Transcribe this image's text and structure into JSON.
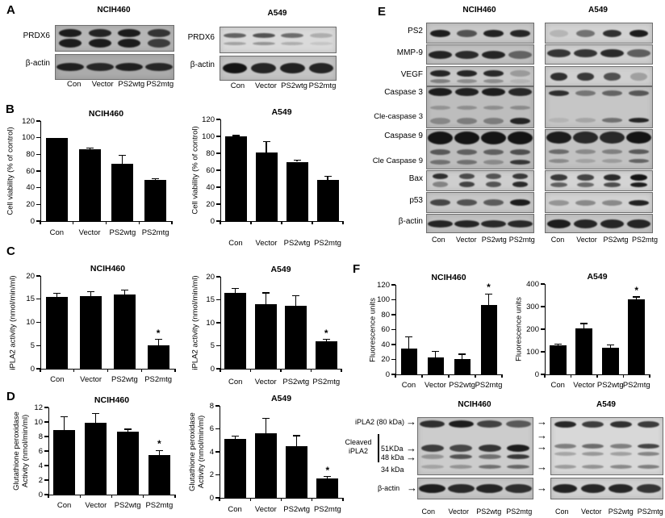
{
  "icons": {
    "arrow_right": "→"
  },
  "figure": {
    "panel_a": {
      "label": "A",
      "row_labels": [
        "PRDX6",
        "β-actin"
      ],
      "groups": [
        {
          "title": "NCIH460",
          "lanes": [
            "Con",
            "Vector",
            "PS2wtg",
            "PS2mtg"
          ]
        },
        {
          "title": "A549",
          "lanes": [
            "Con",
            "Vector",
            "PS2wtg",
            "PS2mtg"
          ]
        }
      ]
    },
    "panel_b": {
      "label": "B"
    },
    "panel_c": {
      "label": "C"
    },
    "panel_d": {
      "label": "D"
    },
    "panel_e": {
      "label": "E",
      "row_labels": [
        "PS2",
        "MMP-9",
        "VEGF",
        "Caspase 3",
        "Cle-caspase 3",
        "Caspase 9",
        "Cle Caspase 9",
        "Bax",
        "p53",
        "β-actin"
      ],
      "groups": [
        {
          "title": "NCIH460",
          "lanes": [
            "Con",
            "Vector",
            "PS2wtg",
            "PS2mtg"
          ]
        },
        {
          "title": "A549",
          "lanes": [
            "Con",
            "Vector",
            "PS2wtg",
            "PS2mtg"
          ]
        }
      ]
    },
    "panel_f": {
      "label": "F",
      "blot_labels": {
        "ipla2_80": "iPLA2 (80 kDa)",
        "cleaved_1": "Cleaved",
        "cleaved_2": "iPLA2",
        "kda_51": "51KDa",
        "kda_48": "48 kDa",
        "kda_34": "34 kDa",
        "beta_actin": "β-actin"
      },
      "groups": [
        {
          "title": "NCIH460",
          "lanes": [
            "Con",
            "Vector",
            "PS2wtg",
            "PS2mtg"
          ]
        },
        {
          "title": "A549",
          "lanes": [
            "Con",
            "Vector",
            "PS2wtg",
            "PS2mtg"
          ]
        }
      ]
    }
  },
  "chart_data": [
    {
      "id": "B-NCIH460",
      "panel": "B",
      "type": "bar",
      "title": "NCIH460",
      "ylabel": "Cell viability (% of control)",
      "categories": [
        "Con",
        "Vector",
        "PS2wtg",
        "PS2mtg"
      ],
      "values": [
        100,
        86,
        69,
        49
      ],
      "errors": [
        0,
        1.5,
        10,
        1.5
      ],
      "significance": [
        "",
        "",
        "",
        ""
      ],
      "ylim": [
        0,
        120
      ],
      "ystep": 20
    },
    {
      "id": "B-A549",
      "panel": "B",
      "type": "bar",
      "title": "A549",
      "ylabel": "Cell viability (% of control)",
      "categories": [
        "Con",
        "Vector",
        "PS2wtg",
        "PS2mtg"
      ],
      "values": [
        100,
        81,
        70,
        49
      ],
      "errors": [
        1,
        13,
        2,
        4
      ],
      "significance": [
        "",
        "",
        "",
        ""
      ],
      "ylim": [
        0,
        120
      ],
      "ystep": 20
    },
    {
      "id": "C-NCIH460",
      "panel": "C",
      "type": "bar",
      "title": "NCIH460",
      "ylabel": "iPLA2 activity (nmol/min/ml)",
      "categories": [
        "Con",
        "Vector",
        "PS2wtg",
        "PS2mtg"
      ],
      "values": [
        15.5,
        15.6,
        16,
        5
      ],
      "errors": [
        0.8,
        1,
        1,
        1.3
      ],
      "significance": [
        "",
        "",
        "",
        "*"
      ],
      "ylim": [
        0,
        20
      ],
      "ystep": 5
    },
    {
      "id": "C-A549",
      "panel": "C",
      "type": "bar",
      "title": "A549",
      "ylabel": "iPLA2 activity (nmol/min/ml)",
      "categories": [
        "Con",
        "Vector",
        "PS2wtg",
        "PS2mtg"
      ],
      "values": [
        16.5,
        14,
        13.7,
        6
      ],
      "errors": [
        1,
        2.5,
        2.2,
        0.4
      ],
      "significance": [
        "",
        "",
        "",
        "*"
      ],
      "ylim": [
        0,
        20
      ],
      "ystep": 5
    },
    {
      "id": "D-NCIH460",
      "panel": "D",
      "type": "bar",
      "title": "NCIH460",
      "ylabel": "Glutathione peroxidase\nActivity (nmol/min/ml)",
      "categories": [
        "Con",
        "Vector",
        "PS2wtg",
        "PS2mtg"
      ],
      "values": [
        8.9,
        9.9,
        8.7,
        5.4
      ],
      "errors": [
        1.8,
        1.3,
        0.3,
        0.7
      ],
      "significance": [
        "",
        "",
        "",
        "*"
      ],
      "ylim": [
        0,
        12
      ],
      "ystep": 2
    },
    {
      "id": "D-A549",
      "panel": "D",
      "type": "bar",
      "title": "A549",
      "ylabel": "Glutathione peroxidase\nActivity (nmol/min/ml)",
      "categories": [
        "Con",
        "Vector",
        "PS2wtg",
        "PS2mtg"
      ],
      "values": [
        5.1,
        5.6,
        4.5,
        1.65
      ],
      "errors": [
        0.25,
        1.3,
        0.9,
        0.2
      ],
      "significance": [
        "",
        "",
        "",
        "*"
      ],
      "ylim": [
        0,
        8
      ],
      "ystep": 2
    },
    {
      "id": "F-NCIH460",
      "panel": "F",
      "type": "bar",
      "title": "NCIH460",
      "ylabel": "Fluorescence units",
      "categories": [
        "Con",
        "Vector",
        "PS2wtg",
        "PS2mtg"
      ],
      "values": [
        35,
        23,
        21,
        93
      ],
      "errors": [
        15,
        8,
        6,
        15
      ],
      "significance": [
        "",
        "",
        "",
        "*"
      ],
      "ylim": [
        0,
        120
      ],
      "ystep": 20
    },
    {
      "id": "F-A549",
      "panel": "F",
      "type": "bar",
      "title": "A549",
      "ylabel": "Fluorescence units",
      "categories": [
        "Con",
        "Vector",
        "PS2wtg",
        "PS2mtg"
      ],
      "values": [
        130,
        205,
        118,
        333
      ],
      "errors": [
        5,
        20,
        12,
        10
      ],
      "significance": [
        "",
        "",
        "",
        "*"
      ],
      "ylim": [
        0,
        400
      ],
      "ystep": 100
    }
  ],
  "blots": {
    "a_nci_prdx6": {
      "bg": "#b6b6b6",
      "rows": [
        {
          "y": 0.3,
          "h": 10,
          "bands": [
            0.95,
            0.9,
            0.95,
            0.8
          ]
        },
        {
          "y": 0.7,
          "h": 11,
          "bands": [
            0.95,
            0.95,
            0.95,
            0.75
          ]
        }
      ]
    },
    "a_nci_actin": {
      "bg": "#ababab",
      "rows": [
        {
          "y": 0.5,
          "h": 10,
          "w": 0.92,
          "bands": [
            0.92,
            0.88,
            0.92,
            0.88
          ]
        }
      ]
    },
    "a_a549_prdx6": {
      "bg": "#dadada",
      "rows": [
        {
          "y": 0.33,
          "h": 6,
          "bands": [
            0.6,
            0.68,
            0.55,
            0.22
          ]
        },
        {
          "y": 0.66,
          "h": 4,
          "bands": [
            0.28,
            0.35,
            0.22,
            0.1
          ]
        }
      ]
    },
    "a_a549_actin": {
      "bg": "#c4c4c4",
      "rows": [
        {
          "y": 0.5,
          "h": 13,
          "w": 0.85,
          "bands": [
            1,
            0.9,
            0.92,
            0.9
          ]
        }
      ]
    },
    "e_nci_ps2": {
      "bg": "#c8c8c8",
      "rows": [
        {
          "y": 0.5,
          "h": 9,
          "bands": [
            0.95,
            0.65,
            0.92,
            0.9
          ]
        }
      ]
    },
    "e_nci_mmp9": {
      "bg": "#c2c2c2",
      "rows": [
        {
          "y": 0.5,
          "h": 10,
          "w": 0.88,
          "bands": [
            0.9,
            0.87,
            0.9,
            0.55
          ]
        }
      ]
    },
    "e_nci_vegf": {
      "bg": "#c8c8c8",
      "rows": [
        {
          "y": 0.35,
          "h": 8,
          "bands": [
            0.9,
            0.9,
            0.88,
            0.25
          ]
        },
        {
          "y": 0.74,
          "h": 5,
          "bands": [
            0.4,
            0.32,
            0.32,
            0.1
          ]
        }
      ]
    },
    "e_nci_casp3": {
      "bg": "#bdbdbd",
      "rows": [
        {
          "y": 0.12,
          "h": 10,
          "w": 0.9,
          "bands": [
            0.95,
            0.92,
            0.95,
            0.88
          ]
        },
        {
          "y": 0.5,
          "h": 5,
          "bands": [
            0.25,
            0.28,
            0.28,
            0.3
          ]
        },
        {
          "y": 0.84,
          "h": 8,
          "bands": [
            0.32,
            0.38,
            0.38,
            0.9
          ]
        }
      ]
    },
    "e_nci_casp9": {
      "bg": "#bdbdbd",
      "rows": [
        {
          "y": 0.2,
          "h": 16,
          "w": 0.95,
          "bands": [
            1,
            1,
            1,
            1
          ]
        },
        {
          "y": 0.58,
          "h": 7,
          "bands": [
            0.6,
            0.55,
            0.55,
            0.65
          ]
        },
        {
          "y": 0.84,
          "h": 6,
          "bands": [
            0.45,
            0.45,
            0.3,
            0.8
          ]
        }
      ]
    },
    "e_nci_bax": {
      "bg": "#cecece",
      "rows": [
        {
          "y": 0.28,
          "h": 7,
          "w": 0.6,
          "bands": [
            0.85,
            0.7,
            0.65,
            0.8
          ]
        },
        {
          "y": 0.7,
          "h": 7,
          "w": 0.6,
          "bands": [
            0.4,
            0.75,
            0.65,
            0.88
          ]
        }
      ]
    },
    "e_nci_p53": {
      "bg": "#c8c8c8",
      "rows": [
        {
          "y": 0.5,
          "h": 8,
          "bands": [
            0.72,
            0.65,
            0.6,
            0.95
          ]
        }
      ]
    },
    "e_nci_actin": {
      "bg": "#c2c2c2",
      "rows": [
        {
          "y": 0.5,
          "h": 9,
          "w": 0.95,
          "bands": [
            0.9,
            0.9,
            0.88,
            0.88
          ]
        }
      ]
    },
    "e_a549_ps2": {
      "bg": "#d2d2d2",
      "rows": [
        {
          "y": 0.5,
          "h": 9,
          "w": 0.7,
          "bands": [
            0.15,
            0.5,
            0.85,
            0.95
          ]
        }
      ]
    },
    "e_a549_mmp9": {
      "bg": "#d0d0d0",
      "rows": [
        {
          "y": 0.45,
          "h": 10,
          "w": 0.85,
          "bands": [
            0.82,
            0.82,
            0.88,
            0.6
          ]
        }
      ]
    },
    "e_a549_vegf": {
      "bg": "#d0d0d0",
      "rows": [
        {
          "y": 0.5,
          "h": 10,
          "w": 0.65,
          "bands": [
            0.85,
            0.8,
            0.68,
            0.25
          ]
        }
      ]
    },
    "e_a549_casp3": {
      "bg": "#c6c6c6",
      "rows": [
        {
          "y": 0.15,
          "h": 7,
          "bands": [
            0.85,
            0.45,
            0.55,
            0.62
          ]
        },
        {
          "y": 0.82,
          "h": 6,
          "bands": [
            0.1,
            0.18,
            0.48,
            0.9
          ]
        }
      ]
    },
    "e_a549_casp9": {
      "bg": "#c2c2c2",
      "rows": [
        {
          "y": 0.2,
          "h": 15,
          "w": 0.95,
          "bands": [
            0.95,
            0.88,
            0.88,
            1
          ]
        },
        {
          "y": 0.56,
          "h": 6,
          "bands": [
            0.5,
            0.32,
            0.38,
            0.6
          ]
        },
        {
          "y": 0.8,
          "h": 5,
          "bands": [
            0.32,
            0.18,
            0.22,
            0.55
          ]
        }
      ]
    },
    "e_a549_bax": {
      "bg": "#d4d4d4",
      "rows": [
        {
          "y": 0.35,
          "h": 8,
          "w": 0.65,
          "bands": [
            0.8,
            0.75,
            0.88,
            1
          ]
        },
        {
          "y": 0.72,
          "h": 6,
          "w": 0.65,
          "bands": [
            0.6,
            0.55,
            0.7,
            0.95
          ]
        }
      ]
    },
    "e_a549_p53": {
      "bg": "#d2d2d2",
      "rows": [
        {
          "y": 0.5,
          "h": 7,
          "bands": [
            0.32,
            0.38,
            0.38,
            0.92
          ]
        }
      ]
    },
    "e_a549_actin": {
      "bg": "#c6c6c6",
      "rows": [
        {
          "y": 0.5,
          "h": 11,
          "w": 0.9,
          "bands": [
            0.95,
            0.9,
            0.9,
            0.9
          ]
        }
      ]
    },
    "f_nci_main": {
      "bg": "#cccccc",
      "rows": [
        {
          "y": 0.11,
          "h": 9,
          "w": 0.88,
          "bands": [
            0.85,
            0.95,
            0.75,
            0.62
          ]
        },
        {
          "y": 0.53,
          "h": 9,
          "bands": [
            0.78,
            0.72,
            0.82,
            0.95
          ]
        },
        {
          "y": 0.68,
          "h": 6,
          "bands": [
            0.3,
            0.65,
            0.5,
            0.8
          ]
        },
        {
          "y": 0.87,
          "h": 5,
          "bands": [
            0.22,
            0.3,
            0.5,
            0.55
          ]
        }
      ]
    },
    "f_nci_actin": {
      "bg": "#c6c6c6",
      "rows": [
        {
          "y": 0.5,
          "h": 11,
          "w": 0.92,
          "bands": [
            0.95,
            0.88,
            0.9,
            0.85
          ]
        }
      ]
    },
    "f_a549_main": {
      "bg": "#d8d8d8",
      "rows": [
        {
          "y": 0.11,
          "h": 8,
          "bands": [
            0.9,
            0.78,
            0.85,
            0.8
          ]
        },
        {
          "y": 0.5,
          "h": 6,
          "bands": [
            0.45,
            0.55,
            0.45,
            0.75
          ]
        },
        {
          "y": 0.64,
          "h": 5,
          "bands": [
            0.25,
            0.32,
            0.28,
            0.42
          ]
        },
        {
          "y": 0.87,
          "h": 5,
          "bands": [
            0.3,
            0.35,
            0.4,
            0.45
          ]
        }
      ]
    },
    "f_a549_actin": {
      "bg": "#d0d0d0",
      "rows": [
        {
          "y": 0.5,
          "h": 11,
          "w": 0.88,
          "bands": [
            0.92,
            0.9,
            0.9,
            0.82
          ]
        }
      ]
    }
  }
}
